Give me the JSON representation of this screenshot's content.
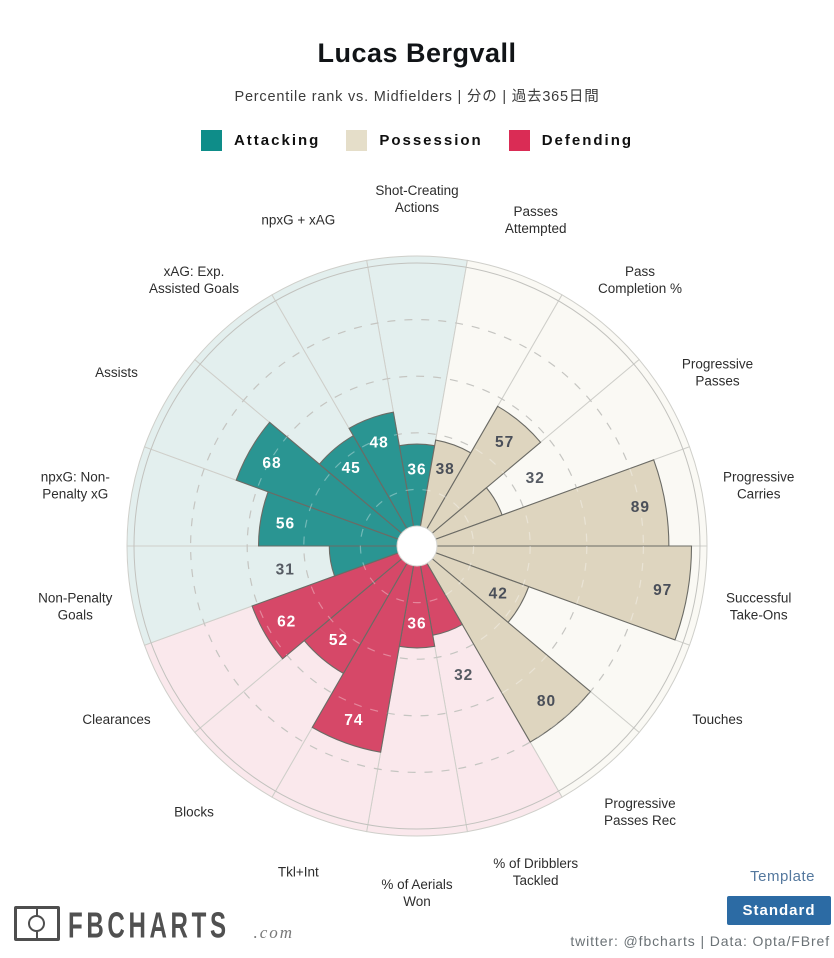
{
  "header": {
    "title": "Lucas Bergvall",
    "subtitle": "Percentile rank vs. Midfielders | 分の | 過去365日間"
  },
  "chart_data": {
    "type": "pie",
    "variant": "pizza-percentile-radar",
    "title": "Lucas Bergvall",
    "max": 100,
    "gridlines": [
      20,
      40,
      60,
      80
    ],
    "outside_value_color": "#565b63",
    "groups": {
      "attacking": {
        "name": "Attacking",
        "legend": "#0e8d89",
        "fill": "#2a9592",
        "bg": "#e3efee",
        "text_in": "#ffffff"
      },
      "possession": {
        "name": "Possession",
        "legend": "#e5dec9",
        "fill": "#ded5bf",
        "bg": "#faf9f4",
        "text_in": "#4a4f59"
      },
      "defending": {
        "name": "Defending",
        "legend": "#da2c55",
        "fill": "#d64868",
        "bg": "#fae8ec",
        "text_in": "#ffffff"
      }
    },
    "slices": [
      {
        "label": [
          "Shot-Creating",
          "Actions"
        ],
        "value": 36,
        "group": "attacking"
      },
      {
        "label": [
          "Passes",
          "Attempted"
        ],
        "value": 38,
        "group": "possession"
      },
      {
        "label": [
          "Pass",
          "Completion %"
        ],
        "value": 57,
        "group": "possession"
      },
      {
        "label": [
          "Progressive",
          "Passes"
        ],
        "value": 32,
        "group": "possession"
      },
      {
        "label": [
          "Progressive",
          "Carries"
        ],
        "value": 89,
        "group": "possession"
      },
      {
        "label": [
          "Successful",
          "Take-Ons"
        ],
        "value": 97,
        "group": "possession"
      },
      {
        "label": [
          "Touches"
        ],
        "value": 42,
        "group": "possession"
      },
      {
        "label": [
          "Progressive",
          "Passes Rec"
        ],
        "value": 80,
        "group": "possession"
      },
      {
        "label": [
          "% of Dribblers",
          "Tackled"
        ],
        "value": 32,
        "group": "defending"
      },
      {
        "label": [
          "% of Aerials",
          "Won"
        ],
        "value": 36,
        "group": "defending"
      },
      {
        "label": [
          "Tkl+Int"
        ],
        "value": 74,
        "group": "defending"
      },
      {
        "label": [
          "Blocks"
        ],
        "value": 52,
        "group": "defending"
      },
      {
        "label": [
          "Clearances"
        ],
        "value": 62,
        "group": "defending"
      },
      {
        "label": [
          "Non-Penalty",
          "Goals"
        ],
        "value": 31,
        "group": "attacking"
      },
      {
        "label": [
          "npxG: Non-",
          "Penalty xG"
        ],
        "value": 56,
        "group": "attacking"
      },
      {
        "label": [
          "Assists"
        ],
        "value": 68,
        "group": "attacking"
      },
      {
        "label": [
          "xAG: Exp.",
          "Assisted Goals"
        ],
        "value": 45,
        "group": "attacking"
      },
      {
        "label": [
          "npxG + xAG"
        ],
        "value": 48,
        "group": "attacking"
      }
    ]
  },
  "footer": {
    "brand": {
      "name": "FBCHARTS",
      "tld": ".com"
    },
    "template_label": "Template",
    "template_value": "Standard",
    "credit": "twitter: @fbcharts | Data: Opta/FBref"
  }
}
